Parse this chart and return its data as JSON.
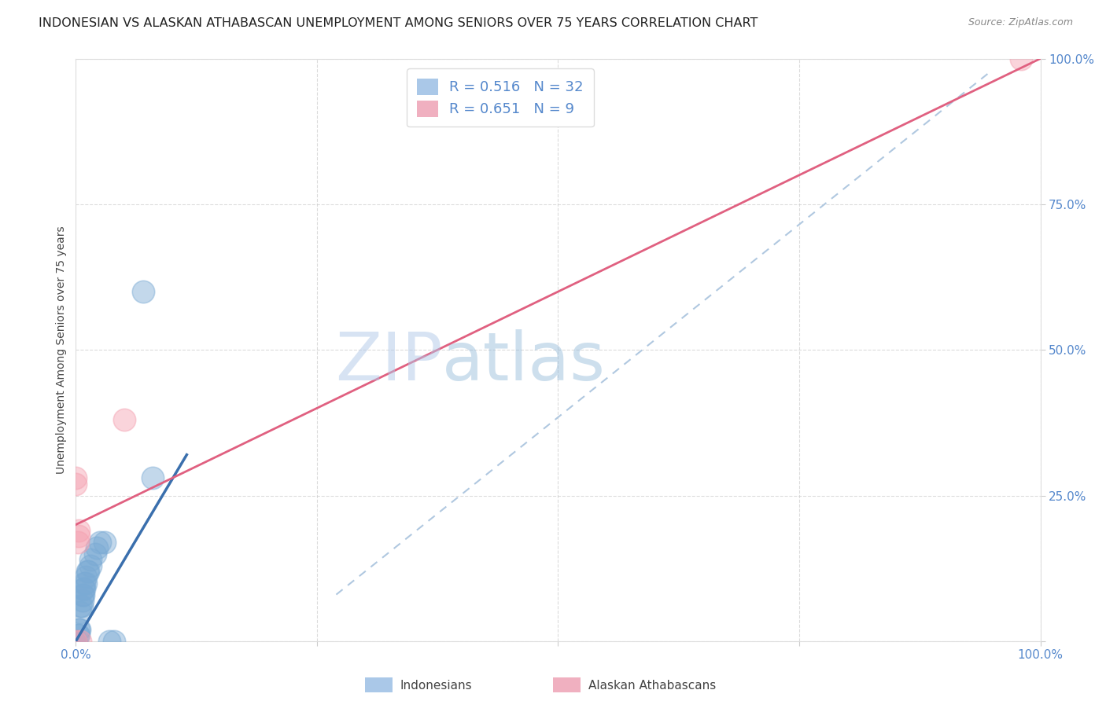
{
  "title": "INDONESIAN VS ALASKAN ATHABASCAN UNEMPLOYMENT AMONG SENIORS OVER 75 YEARS CORRELATION CHART",
  "source": "Source: ZipAtlas.com",
  "ylabel": "Unemployment Among Seniors over 75 years",
  "watermark_zip": "ZIP",
  "watermark_atlas": "atlas",
  "legend_R_blue": "0.516",
  "legend_N_blue": "32",
  "legend_R_pink": "0.651",
  "legend_N_pink": "9",
  "blue_scatter_color": "#7aaad4",
  "pink_scatter_color": "#f4a0b0",
  "blue_line_color": "#3a6fad",
  "pink_line_color": "#e06080",
  "dashed_line_color": "#b0c8e0",
  "indonesian_points_x": [
    0.0,
    0.0,
    0.0,
    0.0,
    0.0,
    0.002,
    0.003,
    0.003,
    0.004,
    0.005,
    0.005,
    0.006,
    0.007,
    0.007,
    0.008,
    0.008,
    0.009,
    0.009,
    0.01,
    0.01,
    0.012,
    0.013,
    0.015,
    0.015,
    0.02,
    0.022,
    0.025,
    0.03,
    0.035,
    0.04,
    0.07,
    0.08
  ],
  "indonesian_points_y": [
    0.0,
    0.0,
    0.0,
    0.0,
    0.0,
    0.01,
    0.01,
    0.02,
    0.02,
    0.05,
    0.06,
    0.06,
    0.07,
    0.08,
    0.08,
    0.09,
    0.09,
    0.1,
    0.1,
    0.11,
    0.12,
    0.12,
    0.13,
    0.14,
    0.15,
    0.16,
    0.17,
    0.17,
    0.0,
    0.0,
    0.6,
    0.28
  ],
  "alaskan_points_x": [
    0.0,
    0.0,
    0.0,
    0.002,
    0.003,
    0.003,
    0.005,
    0.98,
    0.05
  ],
  "alaskan_points_y": [
    0.0,
    0.27,
    0.28,
    0.17,
    0.18,
    0.19,
    0.0,
    1.0,
    0.38
  ],
  "blue_trend_x": [
    0.0,
    0.115
  ],
  "blue_trend_y": [
    0.0,
    0.32
  ],
  "pink_trend_x": [
    0.0,
    1.0
  ],
  "pink_trend_y": [
    0.2,
    1.0
  ],
  "dashed_trend_x": [
    0.27,
    0.95
  ],
  "dashed_trend_y": [
    0.08,
    0.98
  ],
  "xlim": [
    0.0,
    1.0
  ],
  "ylim": [
    0.0,
    1.0
  ],
  "grid_color": "#cccccc",
  "title_color": "#222222",
  "axis_tick_color": "#5588cc",
  "title_fontsize": 11.5,
  "source_fontsize": 9,
  "tick_fontsize": 11,
  "ylabel_fontsize": 10,
  "legend_fontsize": 13
}
